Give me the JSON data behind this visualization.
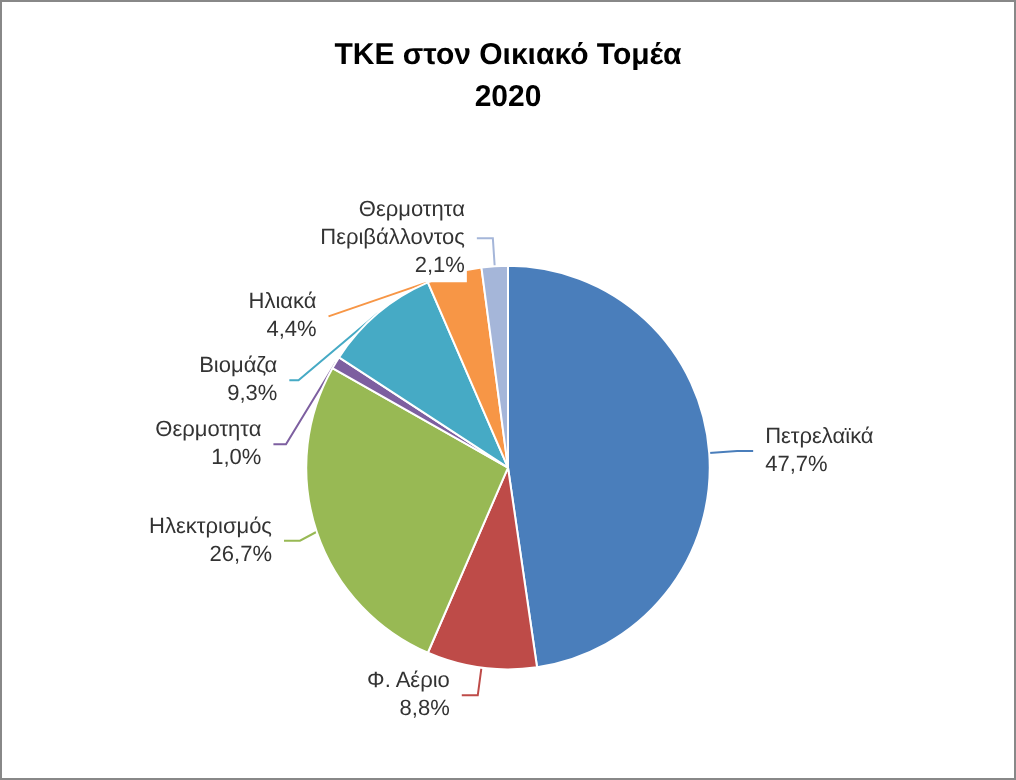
{
  "chart_data": {
    "type": "pie",
    "title": "ΤΚΕ στον Οικιακό Τομέα",
    "subtitle": "2020",
    "categories": [
      "Πετρελαϊκά",
      "Φ. Αέριο",
      "Ηλεκτρισμός",
      "Θερμοτητα",
      "Βιομάζα",
      "Ηλιακά",
      "Θερμοτητα Περιβάλλοντος"
    ],
    "values": [
      47.7,
      8.8,
      26.7,
      1.0,
      9.3,
      4.4,
      2.1
    ],
    "value_labels": [
      "47,7%",
      "8,8%",
      "26,7%",
      "1,0%",
      "9,3%",
      "4,4%",
      "2,1%"
    ],
    "colors": [
      "#4a7ebb",
      "#be4b48",
      "#98b954",
      "#7d5fa0",
      "#46aac5",
      "#f79646",
      "#a5b6d9"
    ],
    "legend": false
  }
}
